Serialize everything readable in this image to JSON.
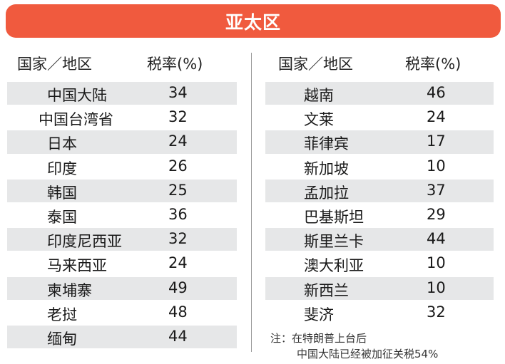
{
  "title": "亚太区",
  "colors": {
    "banner": "#f05a3e",
    "row_shade": "#e6e7e8",
    "text": "#1a1a1a"
  },
  "headers": {
    "name": "国家／地区",
    "rate": "税率(%)"
  },
  "left_rows": [
    {
      "name": "中国大陆",
      "rate": "34"
    },
    {
      "name": "中国台湾省",
      "rate": "32"
    },
    {
      "name": "日本",
      "rate": "24"
    },
    {
      "name": "印度",
      "rate": "26"
    },
    {
      "name": "韩国",
      "rate": "25"
    },
    {
      "name": "泰国",
      "rate": "36"
    },
    {
      "name": "印度尼西亚",
      "rate": "32"
    },
    {
      "name": "马来西亚",
      "rate": "24"
    },
    {
      "name": "柬埔寨",
      "rate": "49"
    },
    {
      "name": "老挝",
      "rate": "48"
    },
    {
      "name": "缅甸",
      "rate": "44"
    }
  ],
  "right_rows": [
    {
      "name": "越南",
      "rate": "46"
    },
    {
      "name": "文莱",
      "rate": "24"
    },
    {
      "name": "菲律宾",
      "rate": "17"
    },
    {
      "name": "新加坡",
      "rate": "10"
    },
    {
      "name": "孟加拉",
      "rate": "37"
    },
    {
      "name": "巴基斯坦",
      "rate": "29"
    },
    {
      "name": "斯里兰卡",
      "rate": "44"
    },
    {
      "name": "澳大利亚",
      "rate": "10"
    },
    {
      "name": "新西兰",
      "rate": "10"
    },
    {
      "name": "斐济",
      "rate": "32"
    }
  ],
  "note": {
    "line1": "注：在特朗普上台后",
    "line2": "中国大陆已经被加征关税54%"
  }
}
